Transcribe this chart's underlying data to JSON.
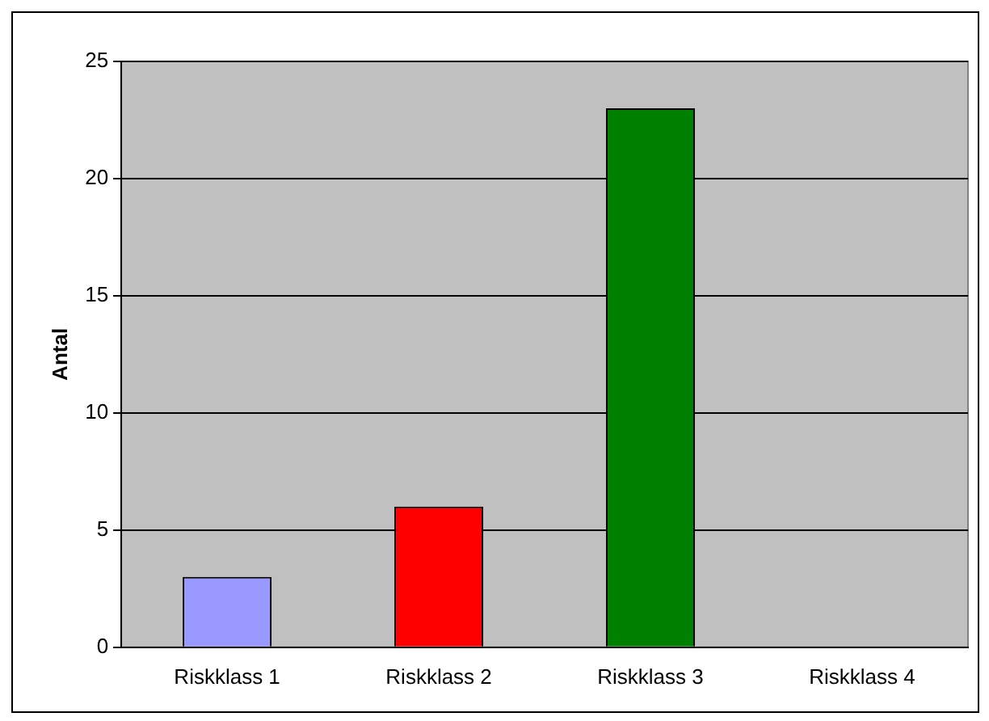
{
  "chart_data": {
    "type": "bar",
    "ylabel": "Antal",
    "categories": [
      "Riskklass 1",
      "Riskklass 2",
      "Riskklass 3",
      "Riskklass 4"
    ],
    "values": [
      3,
      6,
      23,
      0
    ],
    "colors": [
      "#9999ff",
      "#ff0000",
      "#008000",
      "#ffff00"
    ],
    "ylim": [
      0,
      25
    ],
    "yticks": [
      0,
      5,
      10,
      15,
      20,
      25
    ],
    "grid": "y",
    "legend": false
  }
}
